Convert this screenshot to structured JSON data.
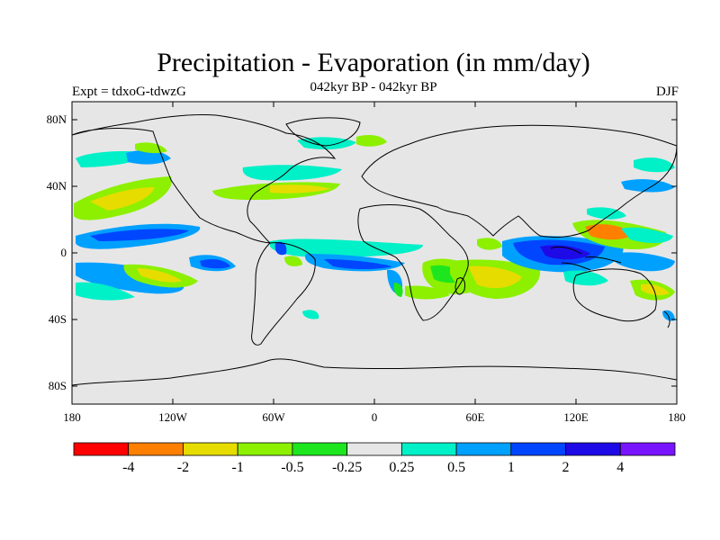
{
  "header": {
    "title": "Precipitation - Evaporation (in mm/day)",
    "subtitle": "042kyr BP - 042kyr BP",
    "left_label": "Expt = tdxoG-tdwzG",
    "right_label": "DJF"
  },
  "map": {
    "lat_ticks": [
      "80N",
      "40N",
      "0",
      "40S",
      "80S"
    ],
    "lon_ticks": [
      "180",
      "120W",
      "60W",
      "0",
      "60E",
      "120E",
      "180"
    ],
    "background_color": "#e6e6e6"
  },
  "colorbar": {
    "colors": [
      "#ff0000",
      "#ff8000",
      "#e6dc00",
      "#8cf000",
      "#1ee61e",
      "#e6e6e6",
      "#00f0c8",
      "#00a0ff",
      "#0046ff",
      "#1e0ae6",
      "#7814ff"
    ],
    "labels": [
      "-4",
      "-2",
      "-1",
      "-0.5",
      "-0.25",
      "0.25",
      "0.5",
      "1",
      "2",
      "4"
    ]
  }
}
